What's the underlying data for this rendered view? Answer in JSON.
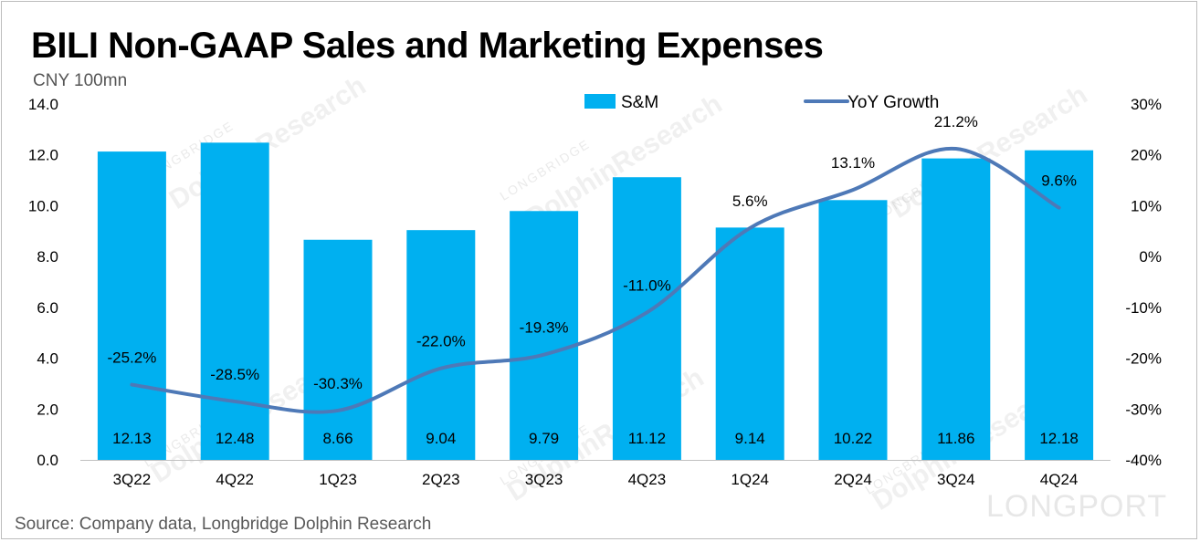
{
  "chart_data": {
    "type": "bar",
    "title": "BILI Non-GAAP Sales and Marketing Expenses",
    "unit_label": "CNY 100mn",
    "source": "Source: Company data, Longbridge Dolphin Research",
    "categories": [
      "3Q22",
      "4Q22",
      "1Q23",
      "2Q23",
      "3Q23",
      "4Q23",
      "1Q24",
      "2Q24",
      "3Q24",
      "4Q24"
    ],
    "series": [
      {
        "name": "S&M",
        "type": "bar",
        "axis": "left",
        "values": [
          12.13,
          12.48,
          8.66,
          9.04,
          9.79,
          11.12,
          9.14,
          10.22,
          11.86,
          12.18
        ],
        "labels": [
          "12.13",
          "12.48",
          "8.66",
          "9.04",
          "9.79",
          "11.12",
          "9.14",
          "10.22",
          "11.86",
          "12.18"
        ]
      },
      {
        "name": "YoY Growth",
        "type": "line",
        "axis": "right",
        "values": [
          -25.2,
          -28.5,
          -30.3,
          -22.0,
          -19.3,
          -11.0,
          5.6,
          13.1,
          21.2,
          9.6
        ],
        "labels": [
          "-25.2%",
          "-28.5%",
          "-30.3%",
          "-22.0%",
          "-19.3%",
          "-11.0%",
          "5.6%",
          "13.1%",
          "21.2%",
          "9.6%"
        ]
      }
    ],
    "ylim_left": [
      0,
      14
    ],
    "yticks_left": [
      "0.0",
      "2.0",
      "4.0",
      "6.0",
      "8.0",
      "10.0",
      "12.0",
      "14.0"
    ],
    "ylim_right": [
      -40,
      30
    ],
    "yticks_right": [
      "-40%",
      "-30%",
      "-20%",
      "-10%",
      "0%",
      "10%",
      "20%",
      "30%"
    ],
    "legend_position": "top-right",
    "grid": false,
    "colors": {
      "bar": "#00B0F0",
      "line": "#4E79B7"
    }
  },
  "watermarks": {
    "brand": "DolphinResearch",
    "tagline": "LONGBRIDGE",
    "corner": "LONGPORT"
  }
}
